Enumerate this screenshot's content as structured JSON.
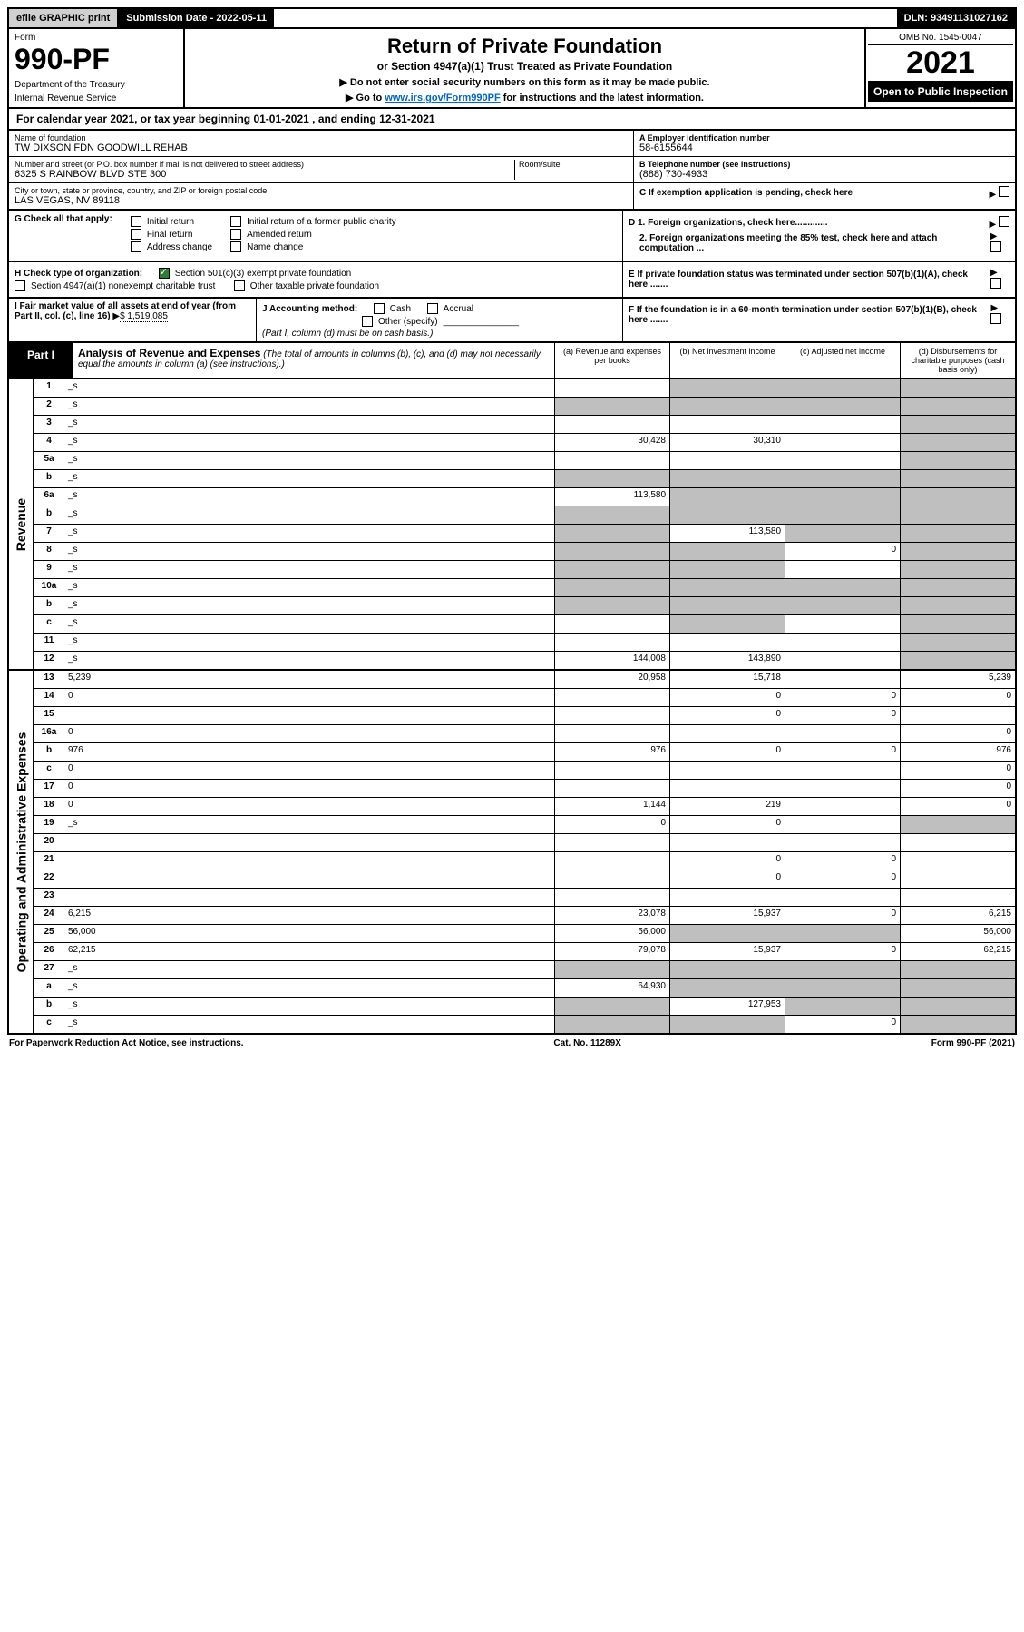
{
  "topbar": {
    "efile": "efile GRAPHIC print",
    "submission": "Submission Date - 2022-05-11",
    "dln": "DLN: 93491131027162"
  },
  "header": {
    "form_label": "Form",
    "form_number": "990-PF",
    "dept1": "Department of the Treasury",
    "dept2": "Internal Revenue Service",
    "title": "Return of Private Foundation",
    "subtitle": "or Section 4947(a)(1) Trust Treated as Private Foundation",
    "note1": "▶ Do not enter social security numbers on this form as it may be made public.",
    "note2_pre": "▶ Go to ",
    "note2_link": "www.irs.gov/Form990PF",
    "note2_post": " for instructions and the latest information.",
    "omb": "OMB No. 1545-0047",
    "year": "2021",
    "open": "Open to Public Inspection"
  },
  "calyear": "For calendar year 2021, or tax year beginning 01-01-2021                     , and ending 12-31-2021",
  "id": {
    "name_lbl": "Name of foundation",
    "name": "TW DIXSON FDN GOODWILL REHAB",
    "addr_lbl": "Number and street (or P.O. box number if mail is not delivered to street address)",
    "addr": "6325 S RAINBOW BLVD STE 300",
    "room_lbl": "Room/suite",
    "city_lbl": "City or town, state or province, country, and ZIP or foreign postal code",
    "city": "LAS VEGAS, NV  89118",
    "ein_lbl": "A Employer identification number",
    "ein": "58-6155644",
    "phone_lbl": "B Telephone number (see instructions)",
    "phone": "(888) 730-4933",
    "c_lbl": "C If exemption application is pending, check here",
    "d1": "D 1. Foreign organizations, check here.............",
    "d2": "2. Foreign organizations meeting the 85% test, check here and attach computation ...",
    "e": "E  If private foundation status was terminated under section 507(b)(1)(A), check here .......",
    "f": "F  If the foundation is in a 60-month termination under section 507(b)(1)(B), check here ......."
  },
  "g": {
    "label": "G Check all that apply:",
    "opts": [
      "Initial return",
      "Final return",
      "Address change",
      "Initial return of a former public charity",
      "Amended return",
      "Name change"
    ]
  },
  "h": {
    "label": "H Check type of organization:",
    "o1": "Section 501(c)(3) exempt private foundation",
    "o2": "Section 4947(a)(1) nonexempt charitable trust",
    "o3": "Other taxable private foundation"
  },
  "i": {
    "label": "I Fair market value of all assets at end of year (from Part II, col. (c), line 16)",
    "val": "$  1,519,085"
  },
  "j": {
    "label": "J Accounting method:",
    "o1": "Cash",
    "o2": "Accrual",
    "o3": "Other (specify)",
    "note": "(Part I, column (d) must be on cash basis.)"
  },
  "part1": {
    "tab": "Part I",
    "title": "Analysis of Revenue and Expenses",
    "sub": "(The total of amounts in columns (b), (c), and (d) may not necessarily equal the amounts in column (a) (see instructions).)",
    "cols": {
      "a": "(a) Revenue and expenses per books",
      "b": "(b) Net investment income",
      "c": "(c) Adjusted net income",
      "d": "(d) Disbursements for charitable purposes (cash basis only)"
    }
  },
  "side": {
    "rev": "Revenue",
    "exp": "Operating and Administrative Expenses"
  },
  "rows": [
    {
      "n": "1",
      "d": "_s",
      "a": "",
      "b": "_s",
      "c": "_s"
    },
    {
      "n": "2",
      "d": "_s",
      "a": "_s",
      "b": "_s",
      "c": "_s"
    },
    {
      "n": "3",
      "d": "_s",
      "a": "",
      "b": "",
      "c": ""
    },
    {
      "n": "4",
      "d": "_s",
      "a": "30,428",
      "b": "30,310",
      "c": ""
    },
    {
      "n": "5a",
      "d": "_s",
      "a": "",
      "b": "",
      "c": ""
    },
    {
      "n": "b",
      "d": "_s",
      "a": "_s",
      "b": "_s",
      "c": "_s"
    },
    {
      "n": "6a",
      "d": "_s",
      "a": "113,580",
      "b": "_s",
      "c": "_s"
    },
    {
      "n": "b",
      "d": "_s",
      "a": "_s",
      "b": "_s",
      "c": "_s"
    },
    {
      "n": "7",
      "d": "_s",
      "a": "_s",
      "b": "113,580",
      "c": "_s"
    },
    {
      "n": "8",
      "d": "_s",
      "a": "_s",
      "b": "_s",
      "c": "0"
    },
    {
      "n": "9",
      "d": "_s",
      "a": "_s",
      "b": "_s",
      "c": ""
    },
    {
      "n": "10a",
      "d": "_s",
      "a": "_s",
      "b": "_s",
      "c": "_s"
    },
    {
      "n": "b",
      "d": "_s",
      "a": "_s",
      "b": "_s",
      "c": "_s"
    },
    {
      "n": "c",
      "d": "_s",
      "a": "",
      "b": "_s",
      "c": ""
    },
    {
      "n": "11",
      "d": "_s",
      "a": "",
      "b": "",
      "c": ""
    },
    {
      "n": "12",
      "d": "_s",
      "a": "144,008",
      "b": "143,890",
      "c": ""
    }
  ],
  "exp_rows": [
    {
      "n": "13",
      "d": "5,239",
      "a": "20,958",
      "b": "15,718",
      "c": ""
    },
    {
      "n": "14",
      "d": "0",
      "a": "",
      "b": "0",
      "c": "0"
    },
    {
      "n": "15",
      "d": "",
      "a": "",
      "b": "0",
      "c": "0"
    },
    {
      "n": "16a",
      "d": "0",
      "a": "",
      "b": "",
      "c": ""
    },
    {
      "n": "b",
      "d": "976",
      "a": "976",
      "b": "0",
      "c": "0"
    },
    {
      "n": "c",
      "d": "0",
      "a": "",
      "b": "",
      "c": ""
    },
    {
      "n": "17",
      "d": "0",
      "a": "",
      "b": "",
      "c": ""
    },
    {
      "n": "18",
      "d": "0",
      "a": "1,144",
      "b": "219",
      "c": ""
    },
    {
      "n": "19",
      "d": "_s",
      "a": "0",
      "b": "0",
      "c": ""
    },
    {
      "n": "20",
      "d": "",
      "a": "",
      "b": "",
      "c": ""
    },
    {
      "n": "21",
      "d": "",
      "a": "",
      "b": "0",
      "c": "0"
    },
    {
      "n": "22",
      "d": "",
      "a": "",
      "b": "0",
      "c": "0"
    },
    {
      "n": "23",
      "d": "",
      "a": "",
      "b": "",
      "c": ""
    },
    {
      "n": "24",
      "d": "6,215",
      "a": "23,078",
      "b": "15,937",
      "c": "0"
    },
    {
      "n": "25",
      "d": "56,000",
      "a": "56,000",
      "b": "_s",
      "c": "_s"
    },
    {
      "n": "26",
      "d": "62,215",
      "a": "79,078",
      "b": "15,937",
      "c": "0"
    },
    {
      "n": "27",
      "d": "_s",
      "a": "_s",
      "b": "_s",
      "c": "_s"
    },
    {
      "n": "a",
      "d": "_s",
      "a": "64,930",
      "b": "_s",
      "c": "_s"
    },
    {
      "n": "b",
      "d": "_s",
      "a": "_s",
      "b": "127,953",
      "c": "_s"
    },
    {
      "n": "c",
      "d": "_s",
      "a": "_s",
      "b": "_s",
      "c": "0"
    }
  ],
  "footer": {
    "left": "For Paperwork Reduction Act Notice, see instructions.",
    "mid": "Cat. No. 11289X",
    "right": "Form 990-PF (2021)"
  }
}
